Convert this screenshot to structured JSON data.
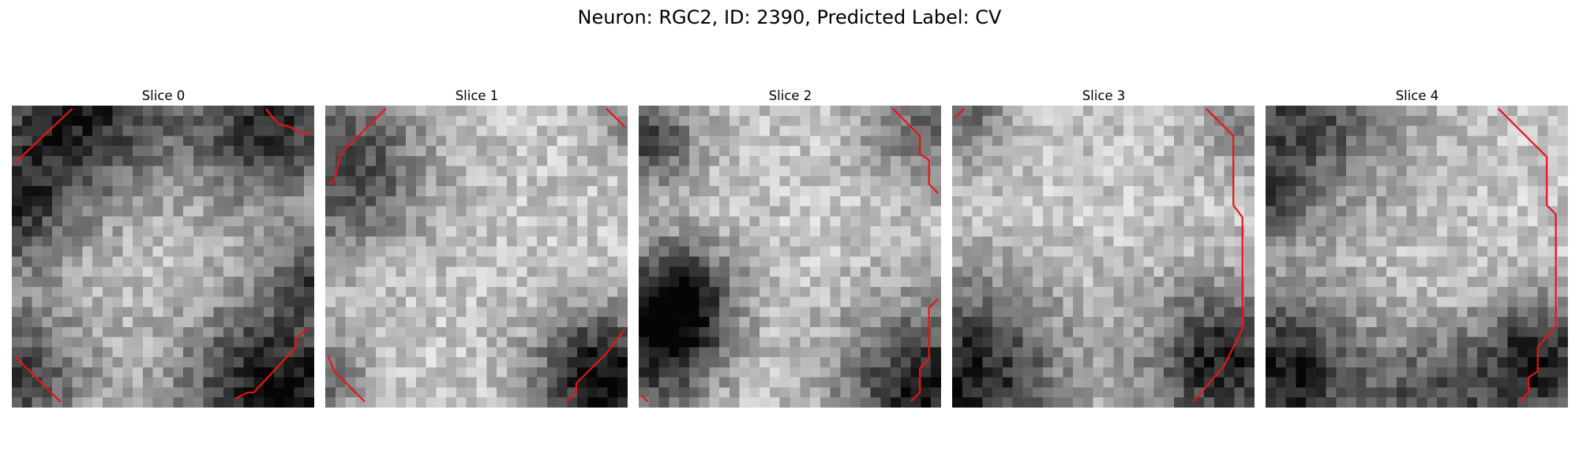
{
  "figure": {
    "title": "Neuron: RGC2, ID: 2390, Predicted Label: CV"
  },
  "panels": [
    {
      "title": "Slice 0"
    },
    {
      "title": "Slice 1"
    },
    {
      "title": "Slice 2"
    },
    {
      "title": "Slice 3"
    },
    {
      "title": "Slice 4"
    }
  ],
  "colors": {
    "contour": "#e8131a",
    "background": "#ffffff",
    "colormap": "gray"
  }
}
